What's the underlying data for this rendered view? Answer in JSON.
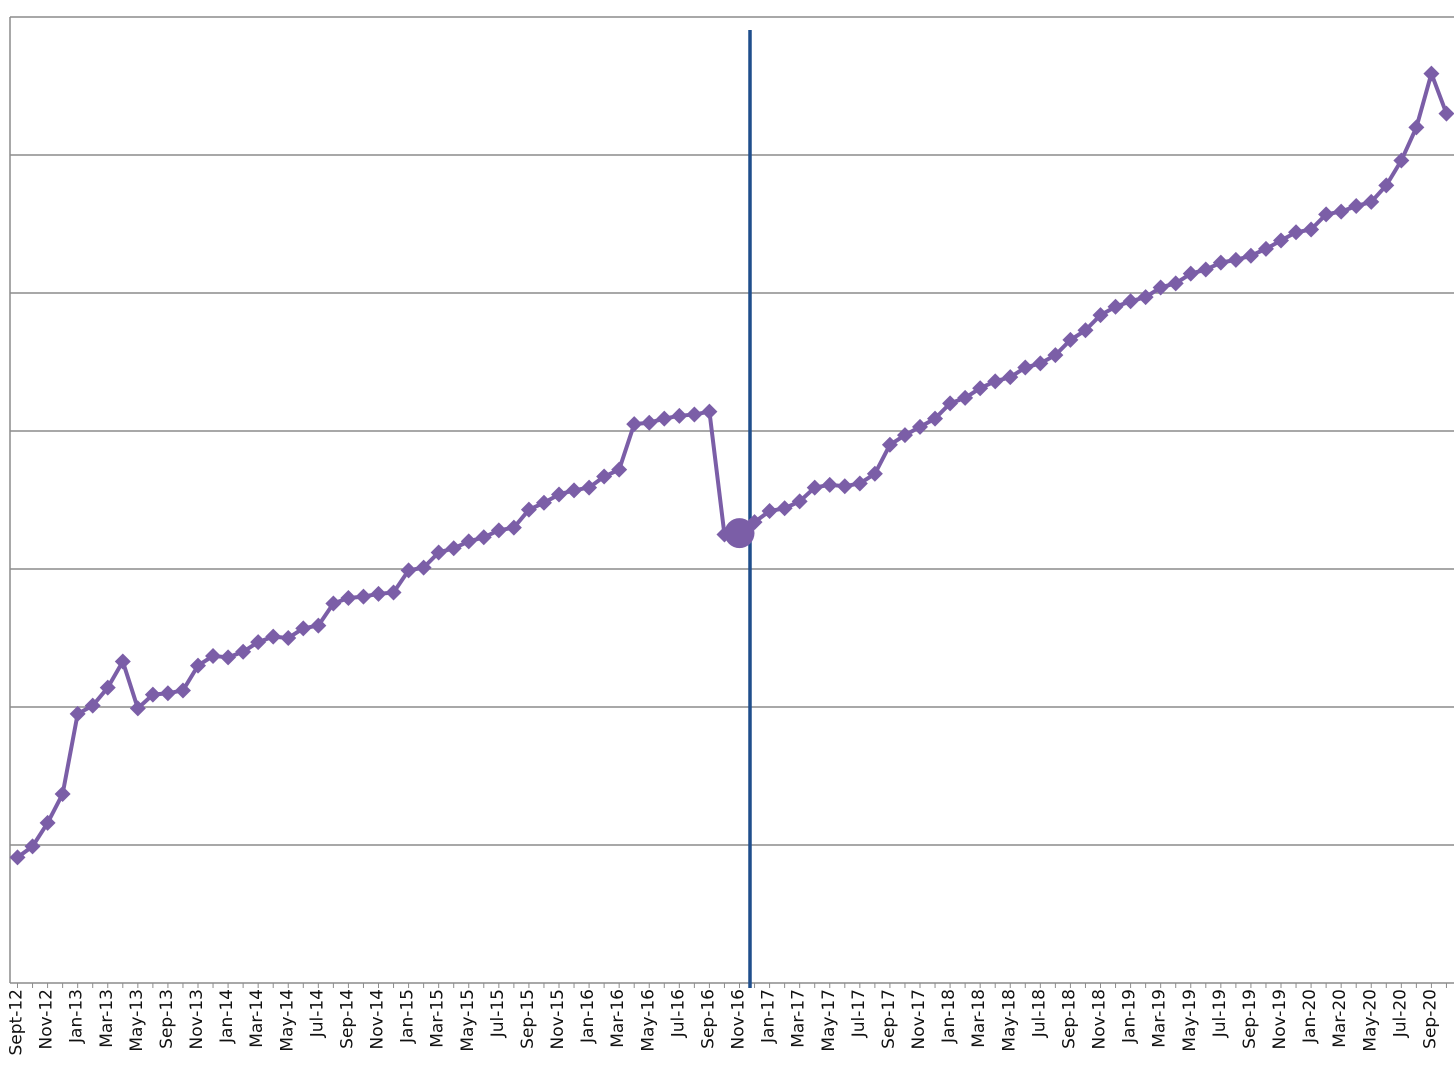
{
  "chart_data": {
    "type": "line",
    "categories": [
      "Sept-12",
      null,
      "Nov-12",
      null,
      "Jan-13",
      null,
      "Mar-13",
      null,
      "May-13",
      null,
      "Sep-13",
      null,
      "Nov-13",
      null,
      "Jan-14",
      null,
      "Mar-14",
      null,
      "May-14",
      null,
      "Jul-14",
      null,
      "Sep-14",
      null,
      "Nov-14",
      null,
      "Jan-15",
      null,
      "Mar-15",
      null,
      "May-15",
      null,
      "Jul-15",
      null,
      "Sep-15",
      null,
      "Nov-15",
      null,
      "Jan-16",
      null,
      "Mar-16",
      null,
      "May-16",
      null,
      "Jul-16",
      null,
      "Sep-16",
      null,
      "Nov-16",
      null,
      "Jan-17",
      null,
      "Mar-17",
      null,
      "May-17",
      null,
      "Jul-17",
      null,
      "Sep-17",
      null,
      "Nov-17",
      null,
      "Jan-18",
      null,
      "Mar-18",
      null,
      "May-18",
      null,
      "Jul-18",
      null,
      "Sep-18",
      null,
      "Nov-18",
      null,
      "Jan-19",
      null,
      "Mar-19",
      null,
      "May-19",
      null,
      "Jul-19",
      null,
      "Sep-19",
      null,
      "Nov-19",
      null,
      "Jan-20",
      null,
      "Mar-20",
      null,
      "May-20",
      null,
      "Jul-20",
      null,
      "Sep-20",
      null
    ],
    "series": [
      {
        "color": "#7b5ea7",
        "values": [
          0.91,
          0.99,
          1.16,
          1.37,
          1.95,
          2.01,
          2.14,
          2.33,
          1.99,
          2.09,
          2.1,
          2.12,
          2.3,
          2.37,
          2.36,
          2.4,
          2.47,
          2.51,
          2.5,
          2.57,
          2.59,
          2.75,
          2.79,
          2.8,
          2.82,
          2.83,
          2.99,
          3.01,
          3.12,
          3.15,
          3.2,
          3.23,
          3.28,
          3.3,
          3.43,
          3.48,
          3.54,
          3.57,
          3.59,
          3.67,
          3.72,
          4.05,
          4.06,
          4.09,
          4.11,
          4.12,
          4.14,
          3.25,
          3.26,
          3.34,
          3.42,
          3.44,
          3.49,
          3.59,
          3.61,
          3.6,
          3.62,
          3.69,
          3.9,
          3.97,
          4.03,
          4.09,
          4.2,
          4.24,
          4.31,
          4.36,
          4.39,
          4.46,
          4.49,
          4.55,
          4.66,
          4.73,
          4.84,
          4.9,
          4.94,
          4.97,
          5.04,
          5.07,
          5.14,
          5.17,
          5.22,
          5.24,
          5.27,
          5.32,
          5.38,
          5.44,
          5.46,
          5.57,
          5.59,
          5.63,
          5.66,
          5.78,
          5.96,
          6.2,
          6.59,
          6.3
        ]
      }
    ],
    "highlight_index": 48,
    "ylim": [
      0,
      7
    ],
    "yticks": [
      0,
      1,
      2,
      3,
      4,
      5,
      6,
      7
    ],
    "grid": true
  }
}
